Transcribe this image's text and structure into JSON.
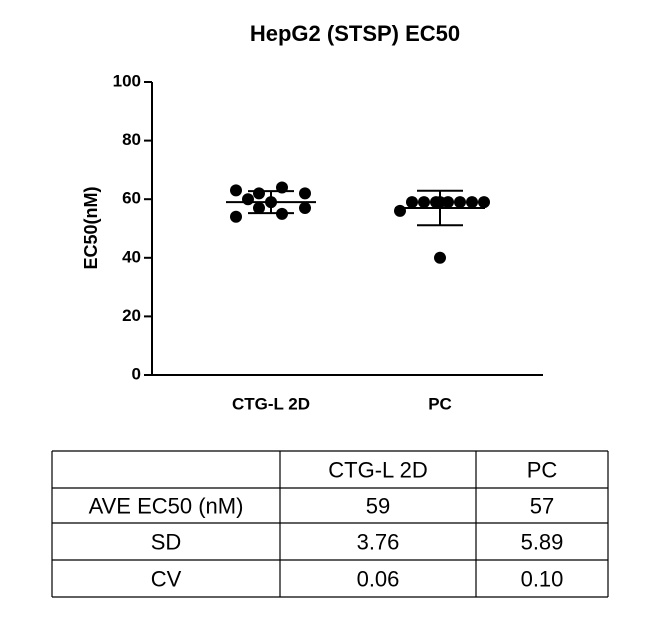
{
  "chart_data": {
    "type": "scatter",
    "title": "HepG2 (STSP) EC50",
    "y_label": "EC50(nM)",
    "categories": [
      "CTG-L 2D",
      "PC"
    ],
    "values": [
      [
        63,
        54,
        62,
        57,
        64,
        55,
        62,
        57,
        60,
        59
      ],
      [
        56,
        59,
        59,
        59,
        59,
        59,
        59,
        59,
        59,
        40
      ]
    ],
    "means": [
      59,
      57
    ],
    "sds": [
      3.76,
      5.89
    ],
    "color": "#000000",
    "ylim": [
      0,
      100
    ],
    "yticks": [
      0,
      20,
      40,
      60,
      80,
      100
    ]
  },
  "table": {
    "columns": [
      "CTG-L 2D",
      "PC"
    ],
    "rows": [
      {
        "label": "AVE EC50 (nM)",
        "cells": [
          "59",
          "57"
        ]
      },
      {
        "label": "SD",
        "cells": [
          "3.76",
          "5.89"
        ]
      },
      {
        "label": "CV",
        "cells": [
          "0.06",
          "0.10"
        ]
      }
    ]
  }
}
